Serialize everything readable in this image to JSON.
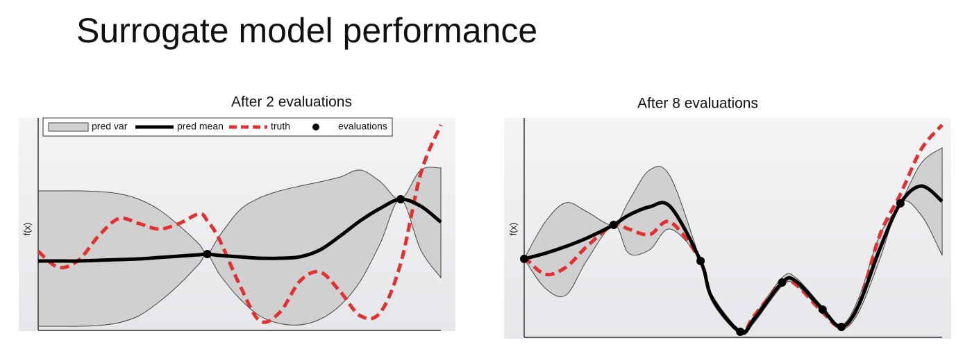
{
  "title": "Surrogate model performance",
  "chart_data": [
    {
      "type": "line",
      "title": "After 2 evaluations",
      "ylabel": "f(x)",
      "legend": "top-left",
      "xlim": [
        0,
        100
      ],
      "ylim": [
        0,
        305
      ],
      "x": [
        0,
        5,
        10,
        15,
        20,
        25,
        30,
        35,
        40,
        42,
        45,
        50,
        55,
        60,
        65,
        70,
        75,
        80,
        85,
        90,
        95,
        100
      ],
      "band": {
        "name": "pred var",
        "color": "#d0d0d0",
        "upper": [
          200,
          200,
          200,
          199,
          196,
          188,
          173,
          150,
          123,
          109,
          135,
          172,
          190,
          200,
          207,
          213,
          220,
          230,
          213,
          188,
          230,
          233
        ],
        "lower": [
          5,
          5,
          5,
          6,
          10,
          20,
          40,
          65,
          95,
          109,
          80,
          45,
          20,
          9,
          7,
          15,
          35,
          70,
          125,
          188,
          115,
          75
        ]
      },
      "mean": {
        "name": "pred mean",
        "color": "#000000",
        "values": [
          99,
          99,
          99,
          100,
          101,
          102,
          104,
          106,
          108,
          109,
          107,
          105,
          103,
          103,
          105,
          115,
          135,
          157,
          175,
          188,
          178,
          155
        ]
      },
      "truth": {
        "name": "truth",
        "color": "#e03030",
        "values": [
          113,
          90,
          100,
          135,
          160,
          153,
          145,
          153,
          167,
          157,
          130,
          65,
          13,
          25,
          70,
          83,
          55,
          20,
          25,
          95,
          225,
          295
        ]
      },
      "evaluations": {
        "name": "evaluations",
        "color": "#000000",
        "x": [
          42,
          90
        ],
        "y": [
          109,
          188
        ]
      }
    },
    {
      "type": "line",
      "title": "After 8 evaluations",
      "ylabel": "f(x)",
      "xlim": [
        0,
        100
      ],
      "ylim": [
        0,
        315
      ],
      "x": [
        0,
        5,
        10,
        15,
        21.4,
        25,
        30,
        35,
        42.2,
        45,
        51.7,
        55,
        61.7,
        65,
        71.4,
        75.9,
        80,
        85,
        90,
        95,
        100
      ],
      "band": {
        "color": "#d0d0d0",
        "upper": [
          112,
          165,
          193,
          180,
          161,
          195,
          240,
          230,
          109,
          60,
          10,
          30,
          85,
          85,
          43,
          17,
          55,
          145,
          192,
          250,
          272
        ],
        "lower": [
          112,
          70,
          60,
          110,
          161,
          120,
          125,
          155,
          109,
          50,
          4,
          20,
          73,
          75,
          35,
          11,
          35,
          110,
          192,
          175,
          117
        ]
      },
      "mean": {
        "color": "#000000",
        "values": [
          112,
          120,
          130,
          142,
          161,
          175,
          187,
          187,
          109,
          55,
          7,
          25,
          78,
          80,
          39,
          14,
          45,
          125,
          192,
          217,
          195
        ]
      },
      "truth": {
        "color": "#e03030",
        "values": [
          115,
          90,
          100,
          130,
          161,
          155,
          147,
          165,
          109,
          55,
          7,
          30,
          78,
          75,
          35,
          14,
          45,
          145,
          205,
          270,
          305
        ]
      },
      "evaluations": {
        "color": "#000000",
        "x": [
          0,
          21.4,
          42.2,
          51.7,
          61.7,
          71.4,
          75.9,
          90
        ],
        "y": [
          112,
          161,
          109,
          7,
          78,
          39,
          14,
          192
        ]
      }
    }
  ]
}
